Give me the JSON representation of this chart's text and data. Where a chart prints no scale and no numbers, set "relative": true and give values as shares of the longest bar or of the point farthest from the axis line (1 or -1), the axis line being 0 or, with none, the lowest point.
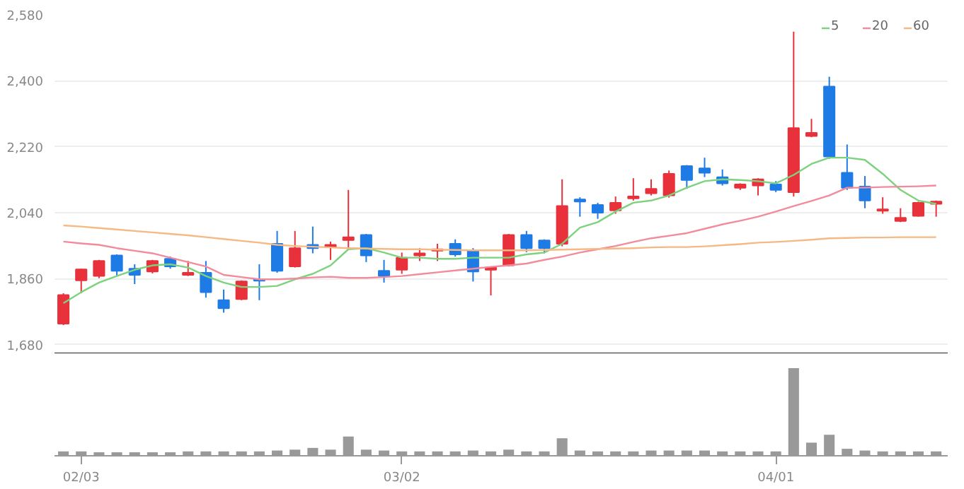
{
  "chart_data": [
    {
      "type": "candlestick",
      "categories": [
        null,
        null,
        null,
        null,
        null,
        null,
        null,
        null,
        null,
        null,
        null,
        null,
        null,
        null,
        null,
        null,
        null,
        null,
        null,
        null,
        null,
        null,
        null,
        null,
        null,
        null,
        null,
        null,
        null,
        null,
        null,
        null,
        null,
        null,
        null,
        null,
        null,
        null,
        null,
        null,
        null,
        null,
        null,
        null,
        null,
        null,
        null,
        null,
        null,
        null
      ],
      "ohlc": [
        [
          1737,
          1820,
          1733,
          1815
        ],
        [
          1855,
          1887,
          1820,
          1885
        ],
        [
          1867,
          1911,
          1861,
          1908
        ],
        [
          1923,
          1926,
          1867,
          1881
        ],
        [
          1887,
          1899,
          1845,
          1870
        ],
        [
          1879,
          1911,
          1874,
          1908
        ],
        [
          1914,
          1920,
          1887,
          1893
        ],
        [
          1870,
          1908,
          1867,
          1876
        ],
        [
          1876,
          1908,
          1808,
          1823
        ],
        [
          1801,
          1830,
          1767,
          1779
        ],
        [
          1804,
          1855,
          1801,
          1852
        ],
        [
          1858,
          1899,
          1801,
          1854
        ],
        [
          1955,
          1990,
          1876,
          1881
        ],
        [
          1893,
          1990,
          1890,
          1943
        ],
        [
          1952,
          2002,
          1929,
          1943
        ],
        [
          1946,
          1961,
          1911,
          1952
        ],
        [
          1965,
          2102,
          1943,
          1973
        ],
        [
          1979,
          1982,
          1905,
          1923
        ],
        [
          1881,
          1911,
          1849,
          1867
        ],
        [
          1884,
          1931,
          1873,
          1917
        ],
        [
          1923,
          1943,
          1908,
          1929
        ],
        [
          1936,
          1955,
          1908,
          1940
        ],
        [
          1955,
          1967,
          1920,
          1926
        ],
        [
          1937,
          1943,
          1852,
          1879
        ],
        [
          1884,
          1892,
          1814,
          1890
        ],
        [
          1896,
          1982,
          1893,
          1979
        ],
        [
          1979,
          1990,
          1932,
          1943
        ],
        [
          1964,
          1967,
          1929,
          1943
        ],
        [
          1955,
          2131,
          1948,
          2058
        ],
        [
          2076,
          2082,
          2029,
          2070
        ],
        [
          2061,
          2067,
          2023,
          2040
        ],
        [
          2046,
          2084,
          2037,
          2067
        ],
        [
          2079,
          2134,
          2073,
          2084
        ],
        [
          2093,
          2131,
          2087,
          2105
        ],
        [
          2087,
          2155,
          2081,
          2146
        ],
        [
          2167,
          2170,
          2105,
          2129
        ],
        [
          2161,
          2190,
          2137,
          2149
        ],
        [
          2137,
          2158,
          2114,
          2120
        ],
        [
          2108,
          2120,
          2102,
          2117
        ],
        [
          2114,
          2134,
          2087,
          2131
        ],
        [
          2117,
          2126,
          2096,
          2102
        ],
        [
          2096,
          2534,
          2084,
          2271
        ],
        [
          2249,
          2296,
          2246,
          2258
        ],
        [
          2384,
          2411,
          2187,
          2193
        ],
        [
          2149,
          2226,
          2102,
          2108
        ],
        [
          2111,
          2140,
          2052,
          2073
        ],
        [
          2045,
          2082,
          2037,
          2049
        ],
        [
          2017,
          2052,
          2014,
          2026
        ],
        [
          2031,
          2070,
          2029,
          2067
        ],
        [
          2064,
          2073,
          2029,
          2070
        ]
      ],
      "series": [
        {
          "name": "5",
          "type": "line",
          "color": "#7dd27d",
          "values": [
            1793,
            1823,
            1849,
            1867,
            1884,
            1896,
            1899,
            1890,
            1867,
            1849,
            1837,
            1837,
            1840,
            1858,
            1873,
            1896,
            1940,
            1943,
            1931,
            1917,
            1917,
            1914,
            1914,
            1917,
            1917,
            1917,
            1926,
            1931,
            1955,
            1999,
            2014,
            2043,
            2067,
            2073,
            2087,
            2108,
            2126,
            2131,
            2129,
            2126,
            2120,
            2143,
            2173,
            2190,
            2190,
            2184,
            2146,
            2102,
            2073,
            2064
          ]
        },
        {
          "name": "20",
          "type": "line",
          "color": "#f28b9b",
          "values": [
            1961,
            1956,
            1952,
            1943,
            1936,
            1929,
            1917,
            1905,
            1893,
            1870,
            1864,
            1858,
            1858,
            1860,
            1863,
            1865,
            1862,
            1862,
            1864,
            1867,
            1872,
            1877,
            1882,
            1887,
            1892,
            1896,
            1901,
            1911,
            1920,
            1931,
            1940,
            1949,
            1960,
            1970,
            1977,
            1984,
            1996,
            2008,
            2018,
            2029,
            2043,
            2058,
            2072,
            2087,
            2108,
            2108,
            2110,
            2111,
            2112,
            2114
          ]
        },
        {
          "name": "60",
          "type": "line",
          "color": "#f6b983",
          "values": [
            2005,
            2002,
            1998,
            1994,
            1990,
            1986,
            1982,
            1978,
            1973,
            1968,
            1963,
            1958,
            1952,
            1949,
            1947,
            1945,
            1943,
            1942,
            1941,
            1940,
            1940,
            1939,
            1938,
            1937,
            1937,
            1937,
            1937,
            1938,
            1939,
            1940,
            1941,
            1942,
            1943,
            1945,
            1946,
            1946,
            1948,
            1951,
            1954,
            1958,
            1960,
            1963,
            1966,
            1970,
            1971,
            1972,
            1972,
            1973,
            1973,
            1973
          ]
        }
      ],
      "ylim": [
        1654,
        2580
      ],
      "yticks": [
        {
          "value": 1680,
          "label": "1,680"
        },
        {
          "value": 1860,
          "label": "1,860"
        },
        {
          "value": 2040,
          "label": "2,040"
        },
        {
          "value": 2220,
          "label": "2,220"
        },
        {
          "value": 2400,
          "label": "2,400"
        },
        {
          "value": 2580,
          "label": "2,580"
        }
      ],
      "grid": true,
      "legend": "top right",
      "tick_labels": "y"
    },
    {
      "type": "bar",
      "relative": true,
      "tick_labels": "x",
      "categories": [
        null,
        "02/03",
        null,
        null,
        null,
        null,
        null,
        null,
        null,
        null,
        null,
        null,
        null,
        null,
        null,
        null,
        null,
        null,
        null,
        "03/02",
        null,
        null,
        null,
        null,
        null,
        null,
        null,
        null,
        null,
        null,
        null,
        null,
        null,
        null,
        null,
        null,
        null,
        null,
        null,
        null,
        "04/01",
        null,
        null,
        null,
        null,
        null,
        null,
        null,
        null,
        null
      ],
      "series": [
        {
          "color": "#999999",
          "values": [
            0.05,
            0.05,
            0.04,
            0.04,
            0.04,
            0.04,
            0.04,
            0.05,
            0.05,
            0.05,
            0.05,
            0.05,
            0.06,
            0.07,
            0.09,
            0.07,
            0.22,
            0.07,
            0.06,
            0.05,
            0.05,
            0.05,
            0.05,
            0.06,
            0.05,
            0.07,
            0.05,
            0.05,
            0.2,
            0.06,
            0.05,
            0.05,
            0.05,
            0.06,
            0.06,
            0.06,
            0.06,
            0.05,
            0.05,
            0.05,
            0.05,
            1,
            0.15,
            0.24,
            0.08,
            0.06,
            0.05,
            0.05,
            0.05,
            0.05
          ]
        }
      ]
    }
  ]
}
